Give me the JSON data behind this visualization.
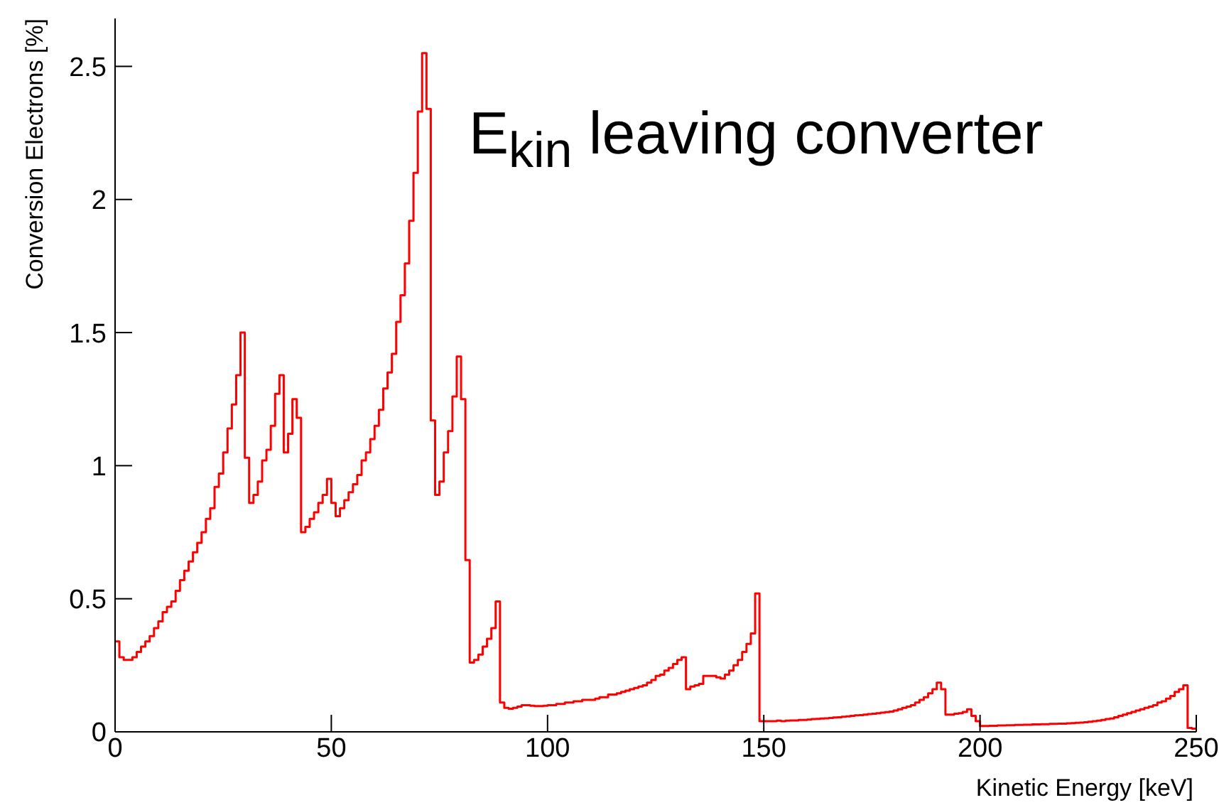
{
  "chart_data": {
    "type": "histogram",
    "title": "E$_{kin}$ leaving converter",
    "xlabel": "Kinetic Energy [keV]",
    "ylabel": "Conversion Electrons [%]",
    "color": "#ff0000",
    "bins": [
      0,
      1,
      2,
      3,
      4,
      5,
      6,
      7,
      8,
      9,
      10,
      11,
      12,
      13,
      14,
      15,
      16,
      17,
      18,
      19,
      20,
      21,
      22,
      23,
      24,
      25,
      26,
      27,
      28,
      29,
      30,
      31,
      32,
      33,
      34,
      35,
      36,
      37,
      38,
      39,
      40,
      41,
      42,
      43,
      44,
      45,
      46,
      47,
      48,
      49,
      50,
      51,
      52,
      53,
      54,
      55,
      56,
      57,
      58,
      59,
      60,
      61,
      62,
      63,
      64,
      65,
      66,
      67,
      68,
      69,
      70,
      71,
      72,
      73,
      74,
      75,
      76,
      77,
      78,
      79,
      80,
      81,
      82,
      83,
      84,
      85,
      86,
      87,
      88,
      89,
      90,
      91,
      92,
      93,
      94,
      95,
      96,
      97,
      98,
      99,
      100,
      101,
      102,
      103,
      104,
      105,
      106,
      107,
      108,
      109,
      110,
      111,
      112,
      113,
      114,
      115,
      116,
      117,
      118,
      119,
      120,
      121,
      122,
      123,
      124,
      125,
      126,
      127,
      128,
      129,
      130,
      131,
      132,
      133,
      134,
      135,
      136,
      137,
      138,
      139,
      140,
      141,
      142,
      143,
      144,
      145,
      146,
      147,
      148,
      149,
      150,
      151,
      152,
      153,
      154,
      155,
      156,
      157,
      158,
      159,
      160,
      161,
      162,
      163,
      164,
      165,
      166,
      167,
      168,
      169,
      170,
      171,
      172,
      173,
      174,
      175,
      176,
      177,
      178,
      179,
      180,
      181,
      182,
      183,
      184,
      185,
      186,
      187,
      188,
      189,
      190,
      191,
      192,
      193,
      194,
      195,
      196,
      197,
      198,
      199,
      200,
      201,
      202,
      203,
      204,
      205,
      206,
      207,
      208,
      209,
      210,
      211,
      212,
      213,
      214,
      215,
      216,
      217,
      218,
      219,
      220,
      221,
      222,
      223,
      224,
      225,
      226,
      227,
      228,
      229,
      230,
      231,
      232,
      233,
      234,
      235,
      236,
      237,
      238,
      239,
      240,
      241,
      242,
      243,
      244,
      245,
      246,
      247,
      248,
      249,
      250
    ],
    "values": [
      0.34,
      0.28,
      0.27,
      0.27,
      0.28,
      0.3,
      0.32,
      0.34,
      0.36,
      0.39,
      0.415,
      0.45,
      0.47,
      0.49,
      0.53,
      0.57,
      0.605,
      0.64,
      0.675,
      0.71,
      0.75,
      0.8,
      0.84,
      0.92,
      0.97,
      1.05,
      1.14,
      1.23,
      1.34,
      1.5,
      1.03,
      0.86,
      0.89,
      0.94,
      1.02,
      1.06,
      1.15,
      1.27,
      1.34,
      1.05,
      1.12,
      1.25,
      1.18,
      0.75,
      0.77,
      0.8,
      0.825,
      0.86,
      0.89,
      0.95,
      0.86,
      0.81,
      0.84,
      0.87,
      0.9,
      0.93,
      0.965,
      1.02,
      1.05,
      1.1,
      1.15,
      1.21,
      1.29,
      1.35,
      1.42,
      1.54,
      1.64,
      1.76,
      1.92,
      2.1,
      2.33,
      2.55,
      2.34,
      1.17,
      0.89,
      0.94,
      1.05,
      1.13,
      1.26,
      1.41,
      1.25,
      0.645,
      0.26,
      0.27,
      0.29,
      0.32,
      0.35,
      0.39,
      0.49,
      0.11,
      0.09,
      0.087,
      0.09,
      0.095,
      0.1,
      0.1,
      0.098,
      0.097,
      0.097,
      0.098,
      0.1,
      0.1,
      0.105,
      0.105,
      0.11,
      0.11,
      0.115,
      0.115,
      0.12,
      0.12,
      0.12,
      0.125,
      0.13,
      0.13,
      0.14,
      0.14,
      0.145,
      0.15,
      0.155,
      0.16,
      0.165,
      0.17,
      0.175,
      0.185,
      0.195,
      0.21,
      0.215,
      0.23,
      0.24,
      0.255,
      0.27,
      0.28,
      0.16,
      0.17,
      0.175,
      0.18,
      0.21,
      0.21,
      0.21,
      0.205,
      0.2,
      0.215,
      0.23,
      0.25,
      0.27,
      0.3,
      0.33,
      0.37,
      0.52,
      0.04,
      0.04,
      0.04,
      0.04,
      0.042,
      0.04,
      0.042,
      0.043,
      0.043,
      0.045,
      0.045,
      0.046,
      0.048,
      0.049,
      0.05,
      0.051,
      0.052,
      0.054,
      0.055,
      0.057,
      0.058,
      0.06,
      0.062,
      0.063,
      0.065,
      0.067,
      0.068,
      0.07,
      0.072,
      0.074,
      0.076,
      0.08,
      0.085,
      0.09,
      0.095,
      0.1,
      0.11,
      0.12,
      0.13,
      0.145,
      0.16,
      0.185,
      0.16,
      0.065,
      0.065,
      0.068,
      0.07,
      0.075,
      0.085,
      0.06,
      0.04,
      0.022,
      0.022,
      0.023,
      0.023,
      0.024,
      0.024,
      0.025,
      0.025,
      0.026,
      0.026,
      0.027,
      0.027,
      0.028,
      0.028,
      0.029,
      0.029,
      0.03,
      0.03,
      0.031,
      0.031,
      0.032,
      0.033,
      0.034,
      0.035,
      0.036,
      0.038,
      0.04,
      0.042,
      0.045,
      0.048,
      0.05,
      0.055,
      0.06,
      0.065,
      0.07,
      0.075,
      0.08,
      0.085,
      0.09,
      0.095,
      0.1,
      0.11,
      0.115,
      0.125,
      0.135,
      0.15,
      0.16,
      0.175,
      0.015,
      0.012
    ],
    "xlim": [
      0,
      250
    ],
    "xticks": [
      0,
      50,
      100,
      150,
      200,
      250
    ],
    "ylim": [
      0,
      2.68
    ],
    "yticks": [
      0,
      0.5,
      1,
      1.5,
      2,
      2.5
    ],
    "grid": false
  }
}
